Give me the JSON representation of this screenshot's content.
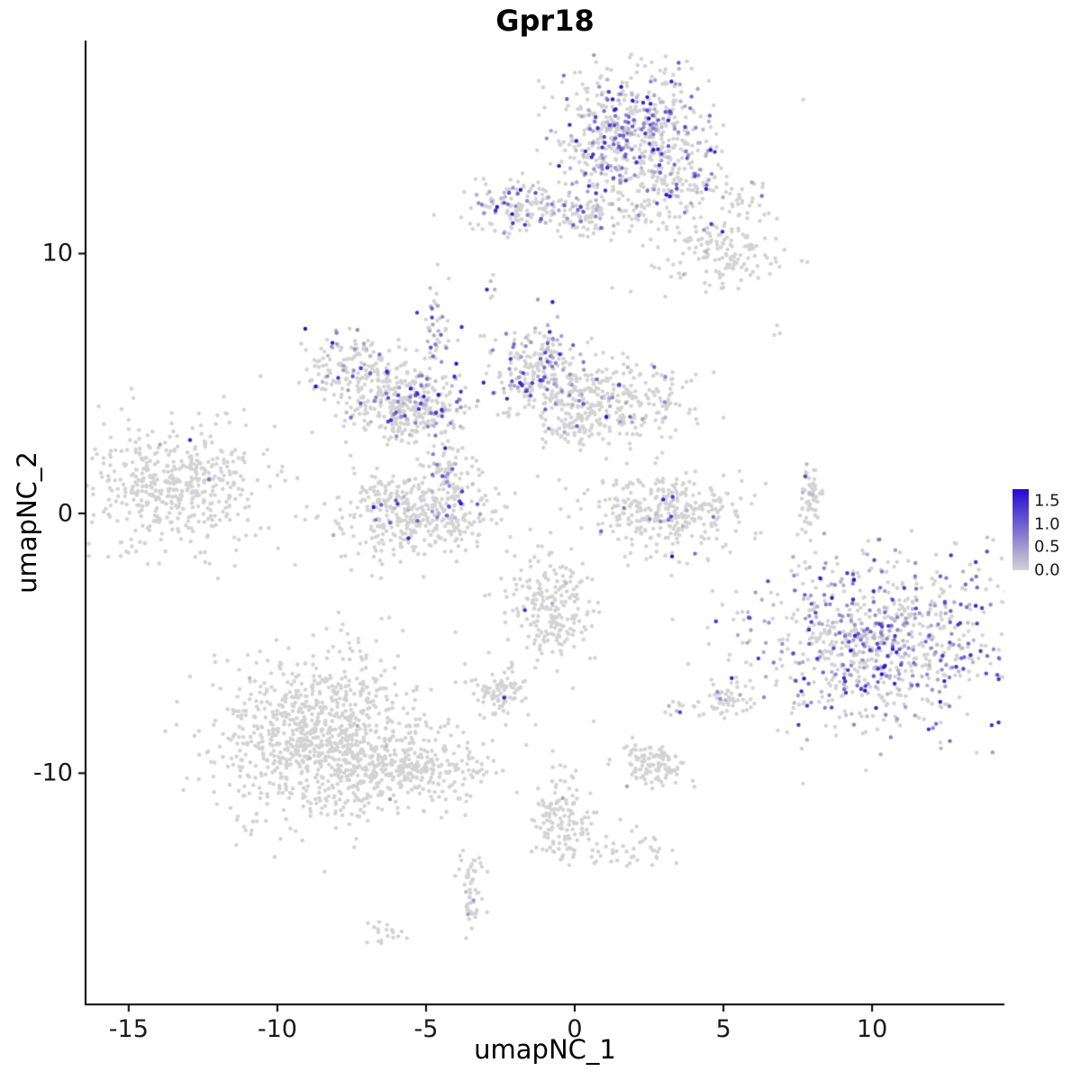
{
  "chart_data": {
    "type": "scatter",
    "title": "Gpr18",
    "xlabel": "umapNC_1",
    "ylabel": "umapNC_2",
    "xlim": [
      -16.45,
      14.45
    ],
    "ylim": [
      -18.9,
      18.2
    ],
    "x_ticks": [
      "-15",
      "-10",
      "-5",
      "0",
      "5",
      "10"
    ],
    "x_tick_values": [
      -15,
      -10,
      -5,
      0,
      5,
      10
    ],
    "y_ticks": [
      "-10",
      "0",
      "10"
    ],
    "y_tick_values": [
      -10,
      0,
      10
    ],
    "grid": false,
    "legend": {
      "position": "right",
      "tick_labels": [
        "1.5",
        "1.0",
        "0.5",
        "0.0"
      ],
      "tick_values": [
        1.5,
        1.0,
        0.5,
        0.0
      ],
      "bar_value_range": [
        0,
        1.75
      ]
    },
    "colors": {
      "low": "#d3d3d3",
      "high": "#2309cf",
      "axis": "#000000",
      "background": "#ffffff"
    },
    "point_radius": 2.2,
    "seed": 42,
    "expression_range": [
      0.0,
      1.6
    ],
    "clusters": [
      {
        "name": "top-main",
        "cx": 1.9,
        "cy": 14.6,
        "sx": 1.35,
        "sy": 1.25,
        "n": 550,
        "expr_frac": 0.38
      },
      {
        "name": "top-ext-right",
        "cx": 3.3,
        "cy": 12.7,
        "sx": 0.9,
        "sy": 0.9,
        "n": 140,
        "expr_frac": 0.12
      },
      {
        "name": "top-left-band",
        "cx": -1.7,
        "cy": 11.8,
        "sx": 1.0,
        "sy": 0.55,
        "n": 160,
        "expr_frac": 0.3
      },
      {
        "name": "top-mid-strip",
        "cx": 0.6,
        "cy": 11.4,
        "sx": 0.8,
        "sy": 0.45,
        "n": 90,
        "expr_frac": 0.15
      },
      {
        "name": "upper-right-blob",
        "cx": 4.7,
        "cy": 10.1,
        "sx": 1.1,
        "sy": 0.8,
        "n": 160,
        "expr_frac": 0.02
      },
      {
        "name": "upper-right-tiny",
        "cx": 5.6,
        "cy": 12.2,
        "sx": 0.4,
        "sy": 0.3,
        "n": 25,
        "expr_frac": 0.05
      },
      {
        "name": "mid-streak",
        "cx": -4.6,
        "cy": 7.0,
        "sx": 0.25,
        "sy": 0.8,
        "n": 45,
        "expr_frac": 0.45
      },
      {
        "name": "left-arc-a",
        "cx": -7.4,
        "cy": 5.7,
        "sx": 0.9,
        "sy": 0.6,
        "n": 130,
        "expr_frac": 0.2
      },
      {
        "name": "left-arc-b",
        "cx": -6.4,
        "cy": 4.7,
        "sx": 0.9,
        "sy": 0.7,
        "n": 160,
        "expr_frac": 0.12
      },
      {
        "name": "left-arc-c",
        "cx": -4.9,
        "cy": 4.1,
        "sx": 0.8,
        "sy": 0.6,
        "n": 130,
        "expr_frac": 0.25
      },
      {
        "name": "left-arc-d",
        "cx": -5.9,
        "cy": 3.6,
        "sx": 0.6,
        "sy": 0.5,
        "n": 80,
        "expr_frac": 0.1
      },
      {
        "name": "center-top",
        "cx": -1.2,
        "cy": 5.4,
        "sx": 0.8,
        "sy": 0.9,
        "n": 260,
        "expr_frac": 0.3
      },
      {
        "name": "center-right-mid",
        "cx": 1.3,
        "cy": 4.3,
        "sx": 1.3,
        "sy": 0.7,
        "n": 280,
        "expr_frac": 0.08
      },
      {
        "name": "mid-connector",
        "cx": -0.1,
        "cy": 3.4,
        "sx": 0.5,
        "sy": 0.4,
        "n": 50,
        "expr_frac": 0.05
      },
      {
        "name": "far-left",
        "cx": -13.4,
        "cy": 1.1,
        "sx": 1.5,
        "sy": 1.2,
        "n": 480,
        "expr_frac": 0.004
      },
      {
        "name": "crescent-left",
        "cx": -5.3,
        "cy": 0.0,
        "sx": 1.4,
        "sy": 0.8,
        "n": 420,
        "expr_frac": 0.06
      },
      {
        "name": "crescent-left-stem",
        "cx": -4.2,
        "cy": 1.8,
        "sx": 0.4,
        "sy": 0.8,
        "n": 70,
        "expr_frac": 0.25
      },
      {
        "name": "crescent-right",
        "cx": 3.1,
        "cy": 0.1,
        "sx": 1.2,
        "sy": 0.8,
        "n": 320,
        "expr_frac": 0.04
      },
      {
        "name": "right-sliver",
        "cx": 7.95,
        "cy": 0.4,
        "sx": 0.18,
        "sy": 0.9,
        "n": 55,
        "expr_frac": 0.12
      },
      {
        "name": "big-right",
        "cx": 10.4,
        "cy": -4.9,
        "sx": 2.3,
        "sy": 1.7,
        "n": 850,
        "expr_frac": 0.42
      },
      {
        "name": "center-small",
        "cx": -0.8,
        "cy": -3.6,
        "sx": 0.7,
        "sy": 1.1,
        "n": 220,
        "expr_frac": 0.015
      },
      {
        "name": "small-square",
        "cx": -2.6,
        "cy": -6.9,
        "sx": 0.5,
        "sy": 0.5,
        "n": 90,
        "expr_frac": 0.01
      },
      {
        "name": "small-right",
        "cx": 5.0,
        "cy": -7.2,
        "sx": 0.45,
        "sy": 0.35,
        "n": 50,
        "expr_frac": 0.02
      },
      {
        "name": "purple-dot-mid",
        "cx": 3.3,
        "cy": -7.5,
        "sx": 0.15,
        "sy": 0.15,
        "n": 8,
        "expr_frac": 0.5
      },
      {
        "name": "bottom-left-main",
        "cx": -8.6,
        "cy": -8.6,
        "sx": 1.7,
        "sy": 1.6,
        "n": 950,
        "expr_frac": 0.003
      },
      {
        "name": "bottom-left-tail",
        "cx": -5.6,
        "cy": -9.8,
        "sx": 1.2,
        "sy": 0.7,
        "n": 260,
        "expr_frac": 0.003
      },
      {
        "name": "bottom-small",
        "cx": 2.6,
        "cy": -9.7,
        "sx": 0.55,
        "sy": 0.4,
        "n": 110,
        "expr_frac": 0.03
      },
      {
        "name": "bottom-elong",
        "cx": -0.5,
        "cy": -11.8,
        "sx": 0.5,
        "sy": 0.9,
        "n": 130,
        "expr_frac": 0.02
      },
      {
        "name": "bottom-elong-tail",
        "cx": 1.5,
        "cy": -12.9,
        "sx": 0.8,
        "sy": 0.35,
        "n": 45,
        "expr_frac": 0.0
      },
      {
        "name": "bottom-streak",
        "cx": -3.5,
        "cy": -14.3,
        "sx": 0.2,
        "sy": 0.8,
        "n": 55,
        "expr_frac": 0.04
      },
      {
        "name": "bottom-tiny",
        "cx": -6.2,
        "cy": -16.2,
        "sx": 0.4,
        "sy": 0.2,
        "n": 18,
        "expr_frac": 0.0
      },
      {
        "name": "single-upper",
        "cx": -2.8,
        "cy": 8.8,
        "sx": 0.15,
        "sy": 0.3,
        "n": 6,
        "expr_frac": 0.3
      },
      {
        "name": "single-right-upper",
        "cx": 6.7,
        "cy": 7.1,
        "sx": 0.2,
        "sy": 0.15,
        "n": 3,
        "expr_frac": 0.0
      },
      {
        "name": "sparse-noise",
        "cx": -1.0,
        "cy": -1.0,
        "sx": 5.5,
        "sy": 5.5,
        "n": 45,
        "expr_frac": 0.02
      }
    ]
  }
}
